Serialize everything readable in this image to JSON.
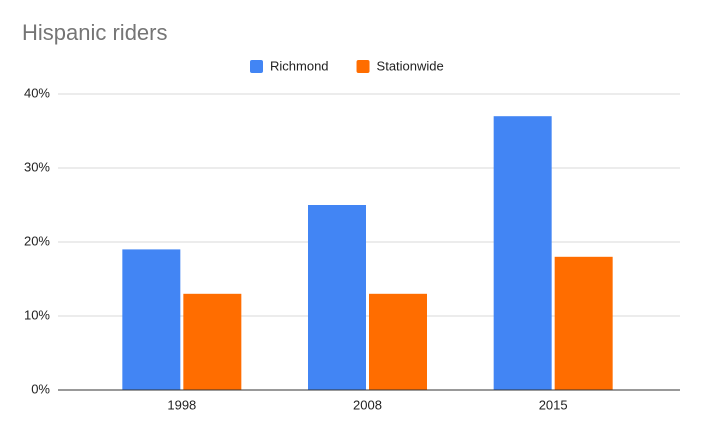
{
  "chart_data": {
    "type": "bar",
    "title": "Hispanic riders",
    "categories": [
      "1998",
      "2008",
      "2015"
    ],
    "series": [
      {
        "name": "Richmond",
        "color": "#4285f4",
        "values": [
          19,
          25,
          37
        ]
      },
      {
        "name": "Stationwide",
        "color": "#ff6d00",
        "values": [
          13,
          13,
          18
        ]
      }
    ],
    "ylim": [
      0,
      40
    ],
    "yticks": [
      {
        "value": 0,
        "label": "0%"
      },
      {
        "value": 10,
        "label": "10%"
      },
      {
        "value": 20,
        "label": "20%"
      },
      {
        "value": 30,
        "label": "30%"
      },
      {
        "value": 40,
        "label": "40%"
      }
    ],
    "grid": true,
    "legend": "top"
  }
}
